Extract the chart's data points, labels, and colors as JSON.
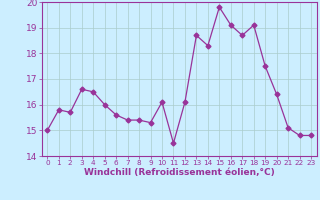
{
  "x": [
    0,
    1,
    2,
    3,
    4,
    5,
    6,
    7,
    8,
    9,
    10,
    11,
    12,
    13,
    14,
    15,
    16,
    17,
    18,
    19,
    20,
    21,
    22,
    23
  ],
  "y": [
    15.0,
    15.8,
    15.7,
    16.6,
    16.5,
    16.0,
    15.6,
    15.4,
    15.4,
    15.3,
    16.1,
    14.5,
    16.1,
    18.7,
    18.3,
    19.8,
    19.1,
    18.7,
    19.1,
    17.5,
    16.4,
    15.1,
    14.8,
    14.8
  ],
  "line_color": "#993399",
  "marker": "D",
  "markersize": 2.5,
  "linewidth": 0.9,
  "bg_color": "#cceeff",
  "grid_color": "#aacccc",
  "xlabel": "Windchill (Refroidissement éolien,°C)",
  "xlim": [
    -0.5,
    23.5
  ],
  "ylim": [
    14,
    20
  ],
  "yticks": [
    14,
    15,
    16,
    17,
    18,
    19,
    20
  ],
  "xticks": [
    0,
    1,
    2,
    3,
    4,
    5,
    6,
    7,
    8,
    9,
    10,
    11,
    12,
    13,
    14,
    15,
    16,
    17,
    18,
    19,
    20,
    21,
    22,
    23
  ],
  "xlabel_fontsize": 6.5,
  "tick_fontsize": 6.5,
  "tick_color": "#993399",
  "spine_color": "#993399"
}
